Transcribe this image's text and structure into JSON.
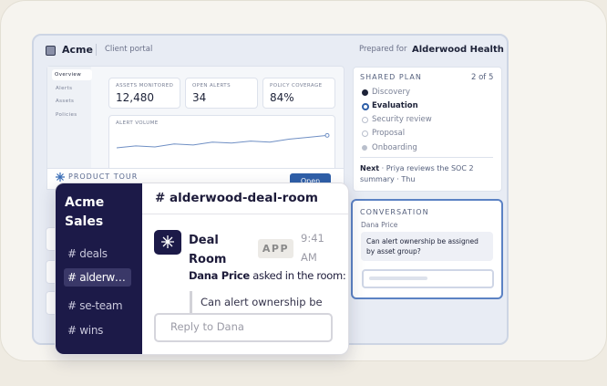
{
  "portal": {
    "brand": "Acme",
    "subtitle": "Client portal",
    "prepared_for_label": "Prepared for",
    "prepared_for": "Alderwood Health",
    "nav": [
      "Overview",
      "Alerts",
      "Assets",
      "Policies"
    ],
    "stats": [
      {
        "label": "ASSETS MONITORED",
        "value": "12,480"
      },
      {
        "label": "OPEN ALERTS",
        "value": "34"
      },
      {
        "label": "POLICY COVERAGE",
        "value": "84%"
      }
    ],
    "alert_volume": {
      "label": "ALERT VOLUME",
      "values": [
        20,
        22,
        21,
        24,
        23,
        26,
        25,
        27,
        26,
        29,
        31,
        33
      ]
    },
    "product_tour": {
      "label": "PRODUCT TOUR",
      "button": "Open"
    },
    "shared_plan": {
      "title": "SHARED PLAN",
      "progress": "2 of 5",
      "steps": [
        "Discovery",
        "Evaluation",
        "Security review",
        "Proposal",
        "Onboarding"
      ],
      "next_label": "Next",
      "next_text": "· Priya reviews the SOC 2 summary · Thu"
    },
    "conversation": {
      "title": "CONVERSATION",
      "author": "Dana Price",
      "message": "Can alert ownership be assigned by asset group?"
    }
  },
  "chat": {
    "workspace": "Acme Sales",
    "channels": [
      "# deals",
      "# alderwood-deal-room",
      "# se-team",
      "# wins"
    ],
    "channel_title": "# alderwood-deal-room",
    "message": {
      "sender": "Deal Room",
      "badge": "APP",
      "time": "9:41 AM",
      "author": "Dana Price",
      "action": "asked in the room:",
      "quote": "Can alert ownership be"
    },
    "reply_placeholder": "Reply to Dana"
  }
}
